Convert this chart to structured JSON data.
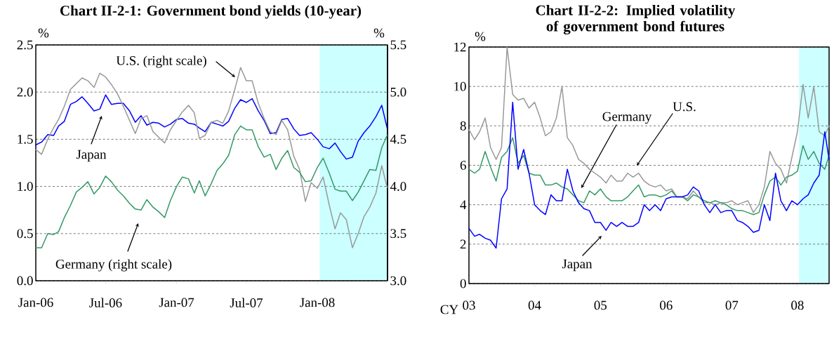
{
  "chart_data": [
    {
      "type": "line",
      "title": "Chart II-2-1: Government bond yields (10-year)",
      "ylabel": "%",
      "y2label": "%",
      "x": [
        "2006-01-01",
        "2006-01-16",
        "2006-02-01",
        "2006-02-16",
        "2006-03-01",
        "2006-03-16",
        "2006-04-01",
        "2006-04-16",
        "2006-05-01",
        "2006-05-16",
        "2006-06-01",
        "2006-06-16",
        "2006-07-01",
        "2006-07-16",
        "2006-08-01",
        "2006-08-16",
        "2006-09-01",
        "2006-09-16",
        "2006-10-01",
        "2006-10-16",
        "2006-11-01",
        "2006-11-16",
        "2006-12-01",
        "2006-12-16",
        "2007-01-01",
        "2007-01-16",
        "2007-02-01",
        "2007-02-16",
        "2007-03-01",
        "2007-03-16",
        "2007-04-01",
        "2007-04-16",
        "2007-05-01",
        "2007-05-16",
        "2007-06-01",
        "2007-06-16",
        "2007-07-01",
        "2007-07-16",
        "2007-08-01",
        "2007-08-16",
        "2007-09-01",
        "2007-09-16",
        "2007-10-01",
        "2007-10-16",
        "2007-11-01",
        "2007-11-16",
        "2007-12-01",
        "2007-12-16",
        "2008-01-01",
        "2008-01-16",
        "2008-02-01",
        "2008-02-16",
        "2008-03-01",
        "2008-03-16",
        "2008-04-01",
        "2008-04-16",
        "2008-05-01",
        "2008-05-16",
        "2008-06-01",
        "2008-06-16",
        "2008-06-30"
      ],
      "series": [
        {
          "color": "#0000ff",
          "values": [
            1.44,
            1.47,
            1.55,
            1.54,
            1.64,
            1.69,
            1.87,
            1.9,
            1.95,
            1.88,
            1.8,
            1.82,
            1.97,
            1.87,
            1.88,
            1.88,
            1.8,
            1.68,
            1.75,
            1.65,
            1.68,
            1.67,
            1.63,
            1.66,
            1.71,
            1.72,
            1.67,
            1.66,
            1.62,
            1.58,
            1.68,
            1.66,
            1.64,
            1.69,
            1.83,
            1.92,
            1.89,
            1.93,
            1.8,
            1.7,
            1.56,
            1.57,
            1.71,
            1.72,
            1.61,
            1.54,
            1.55,
            1.57,
            1.5,
            1.42,
            1.4,
            1.46,
            1.37,
            1.29,
            1.31,
            1.48,
            1.57,
            1.64,
            1.74,
            1.86,
            1.62
          ]
        },
        {
          "color": "#999999",
          "axis": "y2",
          "values": [
            4.39,
            4.34,
            4.5,
            4.62,
            4.71,
            4.85,
            5.03,
            5.09,
            5.15,
            5.12,
            5.05,
            5.2,
            5.16,
            5.08,
            4.98,
            4.85,
            4.7,
            4.56,
            4.72,
            4.75,
            4.58,
            4.52,
            4.46,
            4.6,
            4.7,
            4.79,
            4.86,
            4.78,
            4.51,
            4.54,
            4.68,
            4.7,
            4.67,
            4.8,
            5.03,
            5.26,
            5.12,
            5.12,
            4.88,
            4.72,
            4.58,
            4.55,
            4.7,
            4.6,
            4.32,
            4.18,
            3.84,
            4.04,
            3.98,
            4.1,
            3.8,
            3.55,
            3.72,
            3.65,
            3.35,
            3.5,
            3.68,
            3.78,
            3.93,
            4.22,
            3.99
          ]
        },
        {
          "color": "#339966",
          "axis": "y2",
          "values": [
            3.35,
            3.35,
            3.5,
            3.49,
            3.52,
            3.67,
            3.8,
            3.94,
            3.99,
            4.05,
            3.92,
            3.99,
            4.11,
            4.05,
            3.96,
            3.9,
            3.82,
            3.76,
            3.75,
            3.86,
            3.78,
            3.73,
            3.67,
            3.85,
            4.0,
            4.1,
            4.08,
            3.93,
            4.06,
            3.9,
            4.03,
            4.17,
            4.24,
            4.33,
            4.55,
            4.64,
            4.6,
            4.6,
            4.42,
            4.31,
            4.34,
            4.18,
            4.3,
            4.38,
            4.2,
            4.15,
            4.05,
            4.06,
            4.2,
            4.3,
            4.14,
            3.97,
            3.95,
            3.95,
            3.85,
            3.94,
            4.06,
            4.18,
            4.17,
            4.41,
            4.54
          ]
        }
      ],
      "xlim": [
        "2006-01-01",
        "2008-07-01"
      ],
      "xticks": [
        {
          "value": "2006-01-01",
          "label": "Jan-06"
        },
        {
          "value": "2006-07-01",
          "label": "Jul-06"
        },
        {
          "value": "2007-01-01",
          "label": "Jan-07"
        },
        {
          "value": "2007-07-01",
          "label": "Jul-07"
        },
        {
          "value": "2008-01-01",
          "label": "Jan-08"
        }
      ],
      "ylim": [
        0,
        2.5
      ],
      "yticks": [
        {
          "value": 0,
          "label": "0.0"
        },
        {
          "value": 0.5,
          "label": "0.5"
        },
        {
          "value": 1,
          "label": "1.0"
        },
        {
          "value": 1.5,
          "label": "1.5"
        },
        {
          "value": 2,
          "label": "2.0"
        },
        {
          "value": 2.5,
          "label": "2.5"
        }
      ],
      "y2lim": [
        3,
        5.5
      ],
      "y2ticks": [
        {
          "value": 3,
          "label": "3.0"
        },
        {
          "value": 3.5,
          "label": "3.5"
        },
        {
          "value": 4,
          "label": "4.0"
        },
        {
          "value": 4.5,
          "label": "4.5"
        },
        {
          "value": 5,
          "label": "5.0"
        },
        {
          "value": 5.5,
          "label": "5.5"
        }
      ],
      "grid": "y",
      "bands": [
        {
          "axis": "x",
          "from": "2008-01-07",
          "to": "2008-06-30",
          "color": "#ccffff"
        }
      ],
      "annotations": [
        "U.S. (right scale)",
        "Japan",
        "Germany (right scale)"
      ]
    },
    {
      "type": "line",
      "title": "Chart II-2-2: Implied volatility of government bond futures",
      "ylabel": "%",
      "xlabel": "CY",
      "x": [
        "2003-01",
        "2003-02",
        "2003-03",
        "2003-04",
        "2003-05",
        "2003-06",
        "2003-07",
        "2003-08",
        "2003-09",
        "2003-10",
        "2003-11",
        "2003-12",
        "2004-01",
        "2004-02",
        "2004-03",
        "2004-04",
        "2004-05",
        "2004-06",
        "2004-07",
        "2004-08",
        "2004-09",
        "2004-10",
        "2004-11",
        "2004-12",
        "2005-01",
        "2005-02",
        "2005-03",
        "2005-04",
        "2005-05",
        "2005-06",
        "2005-07",
        "2005-08",
        "2005-09",
        "2005-10",
        "2005-11",
        "2005-12",
        "2006-01",
        "2006-02",
        "2006-03",
        "2006-04",
        "2006-05",
        "2006-06",
        "2006-07",
        "2006-08",
        "2006-09",
        "2006-10",
        "2006-11",
        "2006-12",
        "2007-01",
        "2007-02",
        "2007-03",
        "2007-04",
        "2007-05",
        "2007-06",
        "2007-07",
        "2007-08",
        "2007-09",
        "2007-10",
        "2007-11",
        "2007-12",
        "2008-01",
        "2008-02",
        "2008-03",
        "2008-04",
        "2008-05",
        "2008-06",
        "2008-06-25"
      ],
      "series": [
        {
          "color": "#999999",
          "values": [
            7.8,
            7.3,
            7.7,
            8.4,
            6.9,
            6.3,
            6.9,
            12.0,
            9.6,
            9.3,
            9.4,
            8.9,
            9.2,
            8.4,
            7.5,
            7.7,
            8.4,
            10.0,
            7.4,
            7.0,
            6.3,
            6.1,
            5.8,
            5.6,
            5.4,
            5.1,
            5.5,
            5.2,
            5.2,
            5.6,
            5.4,
            5.6,
            5.2,
            5.0,
            4.9,
            5.0,
            4.7,
            4.8,
            4.4,
            4.4,
            4.3,
            4.7,
            4.4,
            4.1,
            4.1,
            4.0,
            4.1,
            4.1,
            4.2,
            4.0,
            4.1,
            4.2,
            3.6,
            4.0,
            4.9,
            6.7,
            6.1,
            5.8,
            5.1,
            6.4,
            7.7,
            10.1,
            8.4,
            10.0,
            7.7,
            7.5,
            8.0
          ]
        },
        {
          "color": "#339966",
          "values": [
            5.8,
            5.6,
            5.8,
            6.7,
            5.9,
            5.2,
            6.4,
            6.7,
            7.4,
            6.1,
            6.5,
            5.6,
            5.5,
            5.5,
            5.0,
            5.0,
            5.1,
            4.9,
            4.8,
            4.5,
            4.2,
            4.1,
            4.7,
            4.5,
            4.8,
            4.4,
            4.2,
            4.2,
            4.2,
            4.4,
            4.7,
            5.0,
            4.4,
            4.5,
            4.5,
            4.4,
            4.5,
            4.7,
            4.4,
            4.4,
            4.2,
            4.5,
            4.4,
            4.2,
            4.1,
            4.2,
            4.1,
            4.0,
            3.8,
            3.7,
            3.7,
            3.6,
            3.5,
            3.6,
            4.5,
            5.2,
            5.4,
            5.0,
            5.4,
            5.5,
            5.7,
            7.0,
            6.3,
            6.7,
            6.1,
            5.8,
            6.5
          ]
        },
        {
          "color": "#0000ff",
          "values": [
            2.8,
            2.4,
            2.5,
            2.3,
            2.2,
            1.8,
            4.3,
            4.8,
            9.2,
            5.8,
            6.8,
            5.6,
            4.0,
            3.7,
            3.5,
            4.5,
            4.2,
            4.2,
            5.8,
            4.7,
            4.1,
            3.8,
            3.7,
            3.1,
            3.1,
            2.7,
            3.1,
            2.9,
            3.1,
            2.9,
            2.9,
            3.1,
            4.0,
            3.7,
            4.0,
            3.7,
            4.3,
            4.4,
            4.4,
            4.4,
            4.5,
            4.9,
            4.7,
            4.0,
            3.6,
            4.0,
            3.6,
            3.7,
            3.7,
            3.2,
            3.1,
            2.9,
            2.6,
            2.7,
            4.0,
            3.2,
            5.6,
            4.2,
            3.7,
            4.2,
            4.0,
            4.3,
            4.5,
            5.1,
            5.5,
            7.7,
            6.3
          ]
        }
      ],
      "xlim": [
        "2003-01-01",
        "2008-06-25"
      ],
      "xticks": [
        {
          "value": "2003-01-01",
          "label": "03"
        },
        {
          "value": "2004-01-01",
          "label": "04"
        },
        {
          "value": "2005-01-01",
          "label": "05"
        },
        {
          "value": "2006-01-01",
          "label": "06"
        },
        {
          "value": "2007-01-01",
          "label": "07"
        },
        {
          "value": "2008-01-01",
          "label": "08"
        }
      ],
      "ylim": [
        0,
        12
      ],
      "yticks": [
        0,
        2,
        4,
        6,
        8,
        10,
        12
      ],
      "grid": "y",
      "bands": [
        {
          "axis": "x",
          "from": "2008-01-10",
          "to": "2008-06-25",
          "color": "#ccffff"
        }
      ],
      "annotations": [
        "Germany",
        "U.S.",
        "Japan"
      ]
    }
  ]
}
